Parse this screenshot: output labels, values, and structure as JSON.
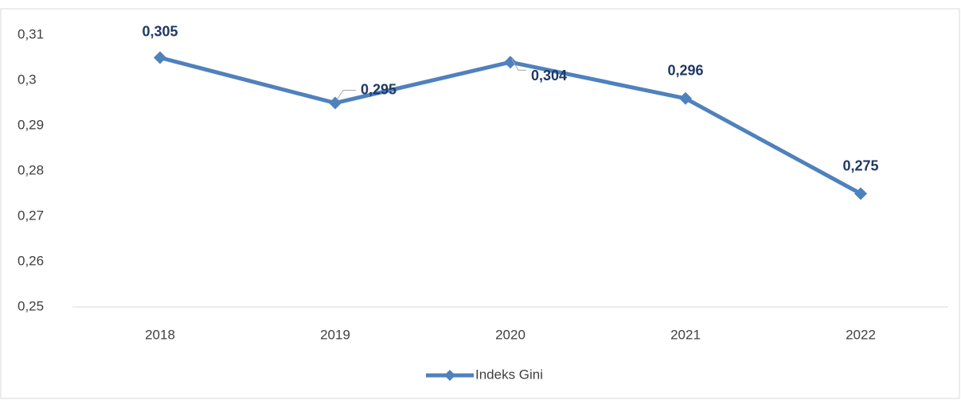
{
  "chart_data": {
    "type": "line",
    "categories": [
      "2018",
      "2019",
      "2020",
      "2021",
      "2022"
    ],
    "series": [
      {
        "name": "Indeks Gini",
        "color": "#4f81bd",
        "values": [
          0.305,
          0.295,
          0.304,
          0.296,
          0.275
        ],
        "value_labels": [
          "0,305",
          "0,295",
          "0,304",
          "0,296",
          "0,275"
        ]
      }
    ],
    "ylim": [
      0.25,
      0.31
    ],
    "yticks": [
      {
        "value": 0.25,
        "label": "0,25"
      },
      {
        "value": 0.26,
        "label": "0,26"
      },
      {
        "value": 0.27,
        "label": "0,27"
      },
      {
        "value": 0.28,
        "label": "0,28"
      },
      {
        "value": 0.29,
        "label": "0,29"
      },
      {
        "value": 0.3,
        "label": "0,3"
      },
      {
        "value": 0.31,
        "label": "0,31"
      }
    ],
    "grid": false,
    "legend": "bottom"
  }
}
